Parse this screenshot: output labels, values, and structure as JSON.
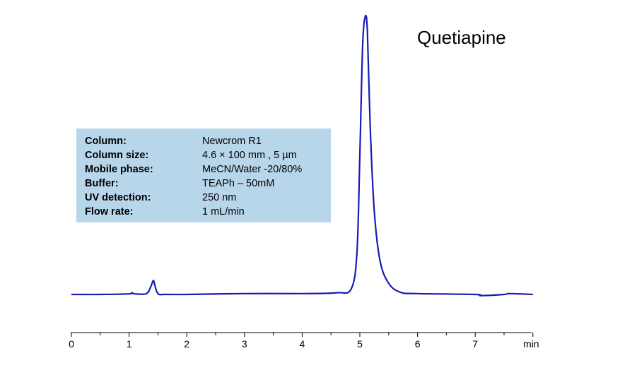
{
  "compound": "Quetiapine",
  "conditions": [
    {
      "label": "Column:",
      "value": "Newcrom R1"
    },
    {
      "label": "Column size:",
      "value": "4.6 × 100 mm , 5 µm"
    },
    {
      "label": "Mobile phase:",
      "value": "MeCN/Water -20/80%"
    },
    {
      "label": "Buffer:",
      "value": "TEAPh – 50mM"
    },
    {
      "label": "UV detection:",
      "value": "250 nm"
    },
    {
      "label": "Flow rate:",
      "value": "1 mL/min"
    }
  ],
  "colors": {
    "trace": "#1a1ab4",
    "conditions_box": "#b8d6ea",
    "axis": "#000000"
  },
  "chart_data": {
    "type": "line",
    "title": "Quetiapine",
    "xlabel": "min",
    "ylabel": "",
    "xlim": [
      0,
      8
    ],
    "ylim": [
      0,
      1
    ],
    "grid": false,
    "x_ticks": [
      "0",
      "1",
      "2",
      "3",
      "4",
      "5",
      "6",
      "7"
    ],
    "x_unit_label": "min",
    "series": [
      {
        "x": [
          0,
          0.5,
          1.0,
          1.05,
          1.1,
          1.3,
          1.38,
          1.42,
          1.45,
          1.48,
          1.52,
          1.6,
          2.0,
          3.0,
          4.0,
          4.6,
          4.85,
          4.95,
          5.0,
          5.05,
          5.1,
          5.13,
          5.18,
          5.25,
          5.35,
          5.5,
          5.7,
          6.0,
          7.0,
          7.1,
          7.5,
          7.6,
          8.0
        ],
        "y": [
          0.0,
          0.0,
          0.002,
          0.006,
          0.002,
          0.003,
          0.03,
          0.05,
          0.03,
          0.01,
          0.0,
          0.0,
          0.0,
          0.003,
          0.003,
          0.006,
          0.02,
          0.15,
          0.5,
          0.9,
          1.0,
          0.95,
          0.6,
          0.3,
          0.12,
          0.04,
          0.008,
          0.003,
          0.0,
          -0.004,
          0.0,
          0.003,
          0.0
        ]
      }
    ],
    "peaks": [
      {
        "x": 1.45,
        "y": 0.05
      },
      {
        "x": 5.1,
        "y": 1.0
      }
    ]
  }
}
